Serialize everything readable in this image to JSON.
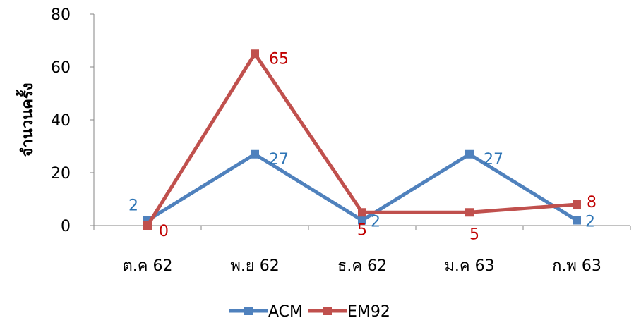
{
  "chart_data": {
    "type": "line",
    "title": "",
    "xlabel": "",
    "ylabel": "จำนวนครั้ง",
    "ylim": [
      0,
      80
    ],
    "yticks": [
      0,
      20,
      40,
      60,
      80
    ],
    "categories": [
      "ต.ค 62",
      "พ.ย 62",
      "ธ.ค 62",
      "ม.ค 63",
      "ก.พ 63"
    ],
    "grid": false,
    "legend_position": "bottom",
    "series": [
      {
        "name": "ACM",
        "values": [
          2,
          27,
          2,
          27,
          2
        ],
        "color": "#4f81bd",
        "label_color": "#2e75b6",
        "marker": "square"
      },
      {
        "name": "EM92",
        "values": [
          0,
          65,
          5,
          5,
          8
        ],
        "color": "#c0504d",
        "label_color": "#c00000",
        "marker": "square"
      }
    ]
  }
}
